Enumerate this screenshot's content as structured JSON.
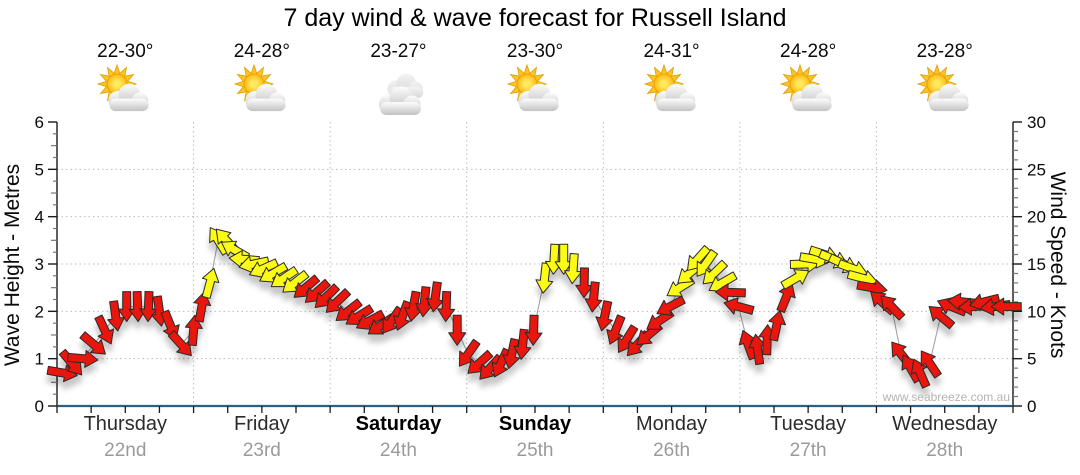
{
  "title": "7 day wind & wave forecast for Russell Island",
  "watermark": "www.seabreeze.com.au",
  "colors": {
    "arrow_red": "#e8130c",
    "arrow_yellow": "#fbfb15",
    "arrow_outline": "#2b2b2b",
    "wave_baseline": "#2e5f7d",
    "gridline": "#bcbcbc",
    "connector_line": "#9a9a9a",
    "axis": "#1a1a1a",
    "date_gray": "#9a9a9a"
  },
  "days": [
    {
      "name": "Thursday",
      "date": "22nd",
      "temp": "22-30°",
      "icon": "partly-cloudy",
      "bold": false
    },
    {
      "name": "Friday",
      "date": "23rd",
      "temp": "24-28°",
      "icon": "partly-cloudy",
      "bold": false
    },
    {
      "name": "Saturday",
      "date": "24th",
      "temp": "23-27°",
      "icon": "cloudy",
      "bold": true
    },
    {
      "name": "Sunday",
      "date": "25th",
      "temp": "23-30°",
      "icon": "partly-cloudy",
      "bold": true
    },
    {
      "name": "Monday",
      "date": "26th",
      "temp": "24-31°",
      "icon": "partly-cloudy",
      "bold": false
    },
    {
      "name": "Tuesday",
      "date": "27th",
      "temp": "24-28°",
      "icon": "partly-cloudy",
      "bold": false
    },
    {
      "name": "Wednesday",
      "date": "28th",
      "temp": "23-28°",
      "icon": "partly-cloudy",
      "bold": false
    }
  ],
  "chart_data": {
    "type": "wind-arrow time series (7 days)",
    "y_left": {
      "label": "Wave Height - Metres",
      "min": 0,
      "max": 6,
      "ticks": [
        0,
        1,
        2,
        3,
        4,
        5,
        6
      ]
    },
    "y_right": {
      "label": "Wind Speed - Knots",
      "min": 0,
      "max": 30,
      "ticks": [
        0,
        5,
        10,
        15,
        20,
        25,
        30
      ]
    },
    "x_categories": [
      "Thursday 22nd",
      "Friday 23rd",
      "Saturday 24th",
      "Sunday 25th",
      "Monday 26th",
      "Tuesday 27th",
      "Wednesday 28th"
    ],
    "grid": "dotted horizontal lines each metre, dotted vertical lines at day boundaries",
    "wave_height_metres": 0.05,
    "arrow_color_rule": "yellow when wind >= ~13 knots, red below",
    "wind_arrows": {
      "format": [
        "day_position_0to7",
        "speed_knots",
        "direction_deg_screen_0_is_up",
        "color r|y"
      ],
      "points": [
        [
          0.04,
          3.5,
          100,
          "r"
        ],
        [
          0.11,
          4.5,
          140,
          "r"
        ],
        [
          0.19,
          5,
          95,
          "r"
        ],
        [
          0.27,
          6.5,
          130,
          "r"
        ],
        [
          0.35,
          8,
          155,
          "r"
        ],
        [
          0.43,
          9.5,
          172,
          "r"
        ],
        [
          0.51,
          10.5,
          180,
          "r"
        ],
        [
          0.59,
          10.5,
          178,
          "r"
        ],
        [
          0.67,
          10.5,
          182,
          "r"
        ],
        [
          0.75,
          10,
          172,
          "r"
        ],
        [
          0.83,
          8.5,
          158,
          "r"
        ],
        [
          0.91,
          6.5,
          138,
          "r"
        ],
        [
          1.0,
          8,
          5,
          "r"
        ],
        [
          1.06,
          10.5,
          10,
          "r"
        ],
        [
          1.12,
          13,
          15,
          "y"
        ],
        [
          1.18,
          17.5,
          328,
          "y"
        ],
        [
          1.24,
          17.5,
          318,
          "y"
        ],
        [
          1.3,
          16.5,
          300,
          "y"
        ],
        [
          1.37,
          15.5,
          275,
          "y"
        ],
        [
          1.44,
          15,
          258,
          "y"
        ],
        [
          1.51,
          14.5,
          246,
          "y"
        ],
        [
          1.58,
          14,
          240,
          "y"
        ],
        [
          1.66,
          13.5,
          236,
          "y"
        ],
        [
          1.74,
          13,
          232,
          "y"
        ],
        [
          1.82,
          12.5,
          230,
          "r"
        ],
        [
          1.9,
          12,
          228,
          "r"
        ],
        [
          1.97,
          11.5,
          226,
          "r"
        ],
        [
          2.05,
          11,
          226,
          "r"
        ],
        [
          2.13,
          10,
          232,
          "r"
        ],
        [
          2.21,
          9.5,
          238,
          "r"
        ],
        [
          2.29,
          9,
          242,
          "r"
        ],
        [
          2.37,
          8.5,
          236,
          "r"
        ],
        [
          2.45,
          9,
          215,
          "r"
        ],
        [
          2.53,
          9.5,
          200,
          "r"
        ],
        [
          2.61,
          10.5,
          190,
          "r"
        ],
        [
          2.69,
          11,
          186,
          "r"
        ],
        [
          2.77,
          11.5,
          188,
          "r"
        ],
        [
          2.85,
          10.5,
          182,
          "r"
        ],
        [
          2.93,
          8,
          180,
          "r"
        ],
        [
          3.01,
          5.5,
          215,
          "r"
        ],
        [
          3.09,
          4.5,
          228,
          "r"
        ],
        [
          3.17,
          4,
          222,
          "r"
        ],
        [
          3.25,
          4.5,
          205,
          "r"
        ],
        [
          3.33,
          5.5,
          192,
          "r"
        ],
        [
          3.41,
          6.5,
          186,
          "r"
        ],
        [
          3.49,
          8,
          182,
          "r"
        ],
        [
          3.57,
          13.5,
          186,
          "y"
        ],
        [
          3.64,
          15.5,
          183,
          "y"
        ],
        [
          3.71,
          15.5,
          180,
          "y"
        ],
        [
          3.78,
          14.5,
          184,
          "y"
        ],
        [
          3.86,
          13,
          181,
          "r"
        ],
        [
          3.93,
          11.5,
          186,
          "r"
        ],
        [
          4.01,
          9.5,
          192,
          "r"
        ],
        [
          4.09,
          8,
          202,
          "r"
        ],
        [
          4.17,
          7,
          212,
          "r"
        ],
        [
          4.25,
          6.5,
          222,
          "r"
        ],
        [
          4.33,
          7.5,
          230,
          "r"
        ],
        [
          4.41,
          9,
          236,
          "r"
        ],
        [
          4.49,
          10.5,
          242,
          "r"
        ],
        [
          4.56,
          12.5,
          238,
          "y"
        ],
        [
          4.63,
          14,
          230,
          "y"
        ],
        [
          4.69,
          15.5,
          222,
          "y"
        ],
        [
          4.75,
          15,
          215,
          "y"
        ],
        [
          4.81,
          14,
          226,
          "y"
        ],
        [
          4.87,
          13,
          240,
          "y"
        ],
        [
          4.93,
          12,
          272,
          "r"
        ],
        [
          4.99,
          10.5,
          285,
          "r"
        ],
        [
          5.06,
          6.5,
          340,
          "r"
        ],
        [
          5.13,
          6,
          352,
          "r"
        ],
        [
          5.2,
          7,
          2,
          "r"
        ],
        [
          5.27,
          8.5,
          12,
          "r"
        ],
        [
          5.34,
          11.5,
          22,
          "r"
        ],
        [
          5.41,
          13.5,
          60,
          "y"
        ],
        [
          5.48,
          15,
          88,
          "y"
        ],
        [
          5.55,
          15.5,
          100,
          "y"
        ],
        [
          5.62,
          16,
          108,
          "y"
        ],
        [
          5.69,
          15.5,
          112,
          "y"
        ],
        [
          5.76,
          15,
          115,
          "y"
        ],
        [
          5.83,
          14.5,
          110,
          "y"
        ],
        [
          5.9,
          13.5,
          105,
          "y"
        ],
        [
          5.97,
          12.5,
          100,
          "r"
        ],
        [
          6.04,
          11,
          312,
          "r"
        ],
        [
          6.11,
          10.5,
          316,
          "r"
        ],
        [
          6.18,
          5.5,
          322,
          "r"
        ],
        [
          6.25,
          4,
          330,
          "r"
        ],
        [
          6.32,
          3.5,
          336,
          "r"
        ],
        [
          6.39,
          4.5,
          326,
          "r"
        ],
        [
          6.47,
          9.5,
          310,
          "r"
        ],
        [
          6.55,
          10.5,
          292,
          "r"
        ],
        [
          6.63,
          11,
          276,
          "r"
        ],
        [
          6.71,
          10.5,
          266,
          "r"
        ],
        [
          6.79,
          11,
          256,
          "r"
        ],
        [
          6.87,
          10.5,
          262,
          "r"
        ],
        [
          6.95,
          10.5,
          270,
          "r"
        ]
      ]
    }
  }
}
